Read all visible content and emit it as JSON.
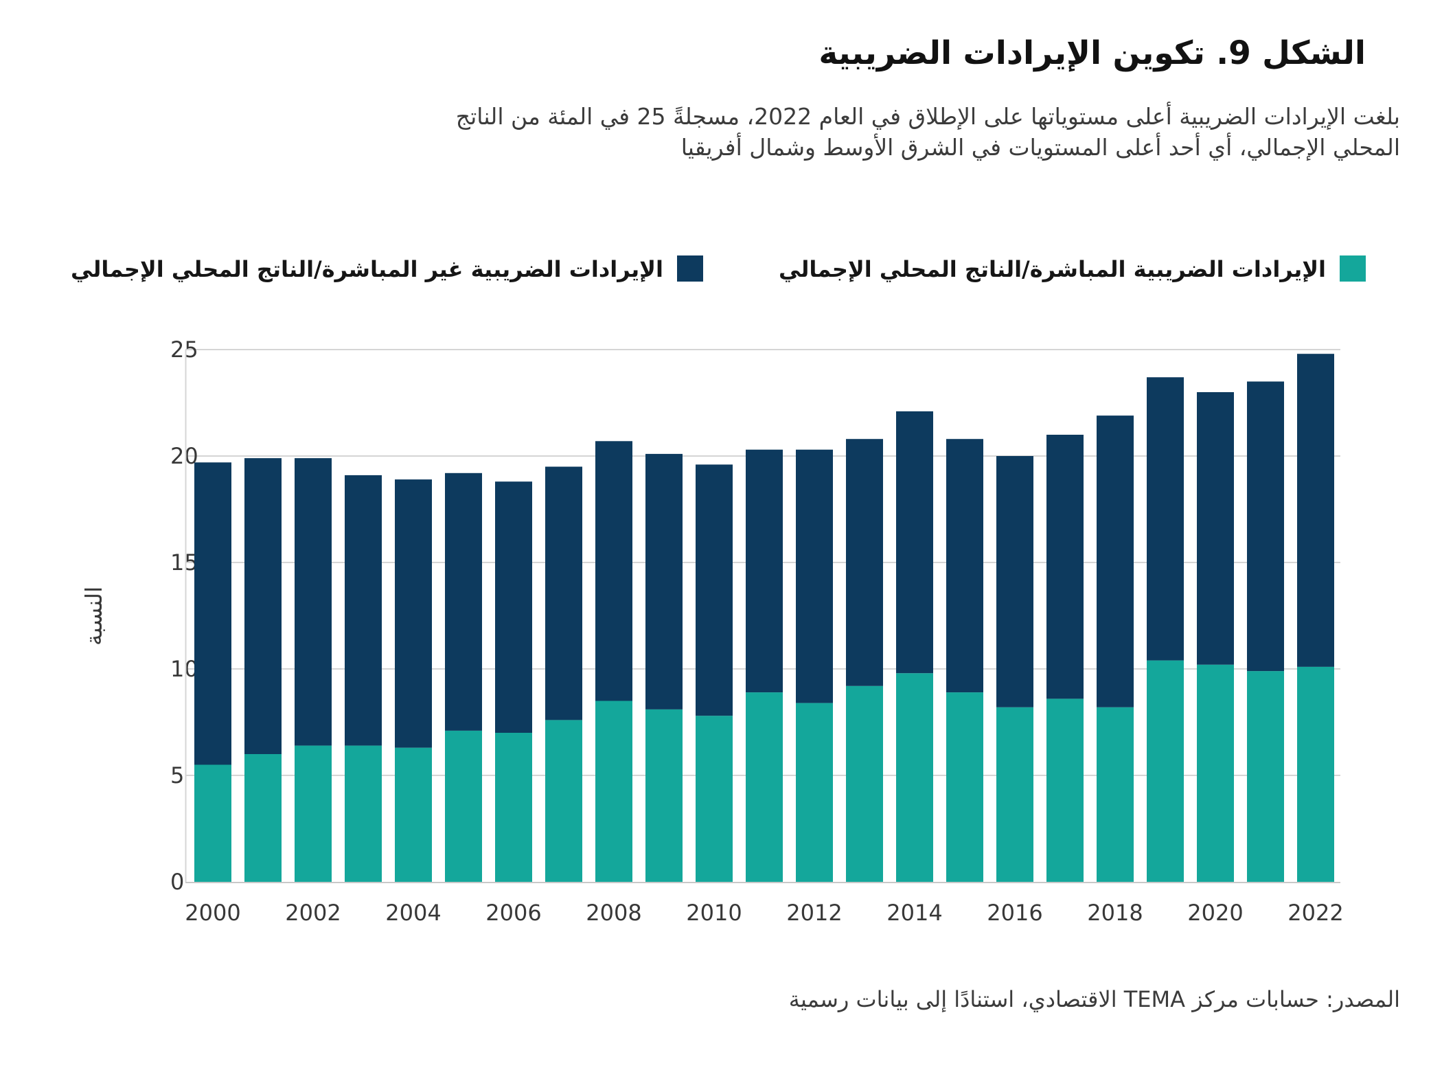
{
  "figure": {
    "title": "الشكل 9. تكوين الإيرادات الضريبية",
    "subtitle_lines": [
      "بلغت الإيرادات الضريبية أعلى مستوياتها على الإطلاق في العام 2022، مسجلةً 25 في المئة من الناتج",
      "المحلي الإجمالي، أي أحد أعلى المستويات في الشرق الأوسط وشمال أفريقيا"
    ],
    "source": "المصدر: حسابات مركز TEMA الاقتصادي، استنادًا إلى بيانات رسمية"
  },
  "legend": {
    "items": [
      {
        "label": "الإيرادات الضريبية المباشرة/الناتج المحلي الإجمالي",
        "color": "#14a79b"
      },
      {
        "label": "الإيرادات الضريبية غير المباشرة/الناتج المحلي الإجمالي",
        "color": "#0d3a5e"
      }
    ]
  },
  "chart_data": {
    "type": "bar",
    "stacked": true,
    "title": "الشكل 9. تكوين الإيرادات الضريبية",
    "categories": [
      "2000",
      "2001",
      "2002",
      "2003",
      "2004",
      "2005",
      "2006",
      "2007",
      "2008",
      "2009",
      "2010",
      "2011",
      "2012",
      "2013",
      "2014",
      "2015",
      "2016",
      "2017",
      "2018",
      "2019",
      "2020",
      "2021",
      "2022"
    ],
    "series": [
      {
        "name": "الإيرادات الضريبية المباشرة/الناتج المحلي الإجمالي",
        "color": "#14a79b",
        "values": [
          5.5,
          6.0,
          6.4,
          6.4,
          6.3,
          7.1,
          7.0,
          7.6,
          8.5,
          8.1,
          7.8,
          8.9,
          8.4,
          9.2,
          9.8,
          8.9,
          8.2,
          8.6,
          8.2,
          10.4,
          10.2,
          9.9,
          10.1
        ]
      },
      {
        "name": "الإيرادات الضريبية غير المباشرة/الناتج المحلي الإجمالي",
        "color": "#0d3a5e",
        "values": [
          14.2,
          13.9,
          13.5,
          12.7,
          12.6,
          12.1,
          11.8,
          11.9,
          12.2,
          12.0,
          11.8,
          11.4,
          11.9,
          11.6,
          12.3,
          11.9,
          11.8,
          12.4,
          13.7,
          13.3,
          12.8,
          13.6,
          14.7
        ]
      }
    ],
    "totals": [
      19.7,
      19.9,
      19.9,
      19.1,
      18.9,
      19.2,
      18.8,
      19.5,
      20.7,
      20.1,
      19.6,
      20.3,
      20.3,
      20.8,
      22.1,
      20.8,
      20.0,
      21.0,
      21.9,
      23.7,
      23.0,
      23.5,
      24.8
    ],
    "xlabel": "",
    "ylabel": "النسبة",
    "ylim": [
      0,
      25
    ],
    "yticks": [
      0,
      5,
      10,
      15,
      20,
      25
    ],
    "xtick_every": 2,
    "grid": "horizontal",
    "legend_position": "top-right",
    "grid_color": "#d5d5d5",
    "axis_color": "#c8c8c8"
  }
}
